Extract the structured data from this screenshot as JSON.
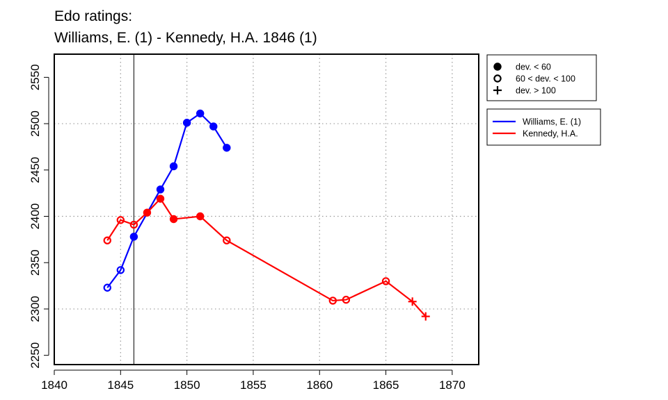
{
  "title": {
    "line1": "Edo ratings:",
    "line2": "Williams, E. (1) - Kennedy, H.A. 1846 (1)"
  },
  "colors": {
    "williams": "#0000ff",
    "kennedy": "#ff0000",
    "grid": "#999999",
    "axis": "#000000"
  },
  "chart_data": {
    "type": "line",
    "title": "Edo ratings: Williams, E. (1) - Kennedy, H.A. 1846 (1)",
    "xlabel": "",
    "ylabel": "",
    "xlim": [
      1840,
      1872
    ],
    "ylim": [
      2240,
      2575
    ],
    "x_ticks": [
      1840,
      1845,
      1850,
      1855,
      1860,
      1865,
      1870
    ],
    "y_ticks": [
      2250,
      2300,
      2350,
      2400,
      2450,
      2500,
      2550
    ],
    "x_grid": [
      1845,
      1850,
      1855,
      1860,
      1865,
      1870
    ],
    "y_grid": [
      2300,
      2400,
      2500
    ],
    "marker_line_x": 1846,
    "series": [
      {
        "name": "Williams, E. (1)",
        "color": "#0000ff",
        "points": [
          {
            "x": 1844,
            "y": 2323,
            "marker": "open"
          },
          {
            "x": 1845,
            "y": 2342,
            "marker": "open"
          },
          {
            "x": 1846,
            "y": 2378,
            "marker": "filled"
          },
          {
            "x": 1848,
            "y": 2429,
            "marker": "filled"
          },
          {
            "x": 1849,
            "y": 2454,
            "marker": "filled"
          },
          {
            "x": 1850,
            "y": 2501,
            "marker": "filled"
          },
          {
            "x": 1851,
            "y": 2511,
            "marker": "filled"
          },
          {
            "x": 1852,
            "y": 2497,
            "marker": "filled"
          },
          {
            "x": 1853,
            "y": 2474,
            "marker": "filled"
          }
        ]
      },
      {
        "name": "Kennedy, H.A.",
        "color": "#ff0000",
        "points": [
          {
            "x": 1844,
            "y": 2374,
            "marker": "open"
          },
          {
            "x": 1845,
            "y": 2396,
            "marker": "open"
          },
          {
            "x": 1846,
            "y": 2391,
            "marker": "open"
          },
          {
            "x": 1847,
            "y": 2404,
            "marker": "filled"
          },
          {
            "x": 1848,
            "y": 2419,
            "marker": "filled"
          },
          {
            "x": 1849,
            "y": 2397,
            "marker": "filled"
          },
          {
            "x": 1851,
            "y": 2400,
            "marker": "filled"
          },
          {
            "x": 1853,
            "y": 2374,
            "marker": "open"
          },
          {
            "x": 1861,
            "y": 2309,
            "marker": "open"
          },
          {
            "x": 1862,
            "y": 2310,
            "marker": "open"
          },
          {
            "x": 1865,
            "y": 2330,
            "marker": "open"
          },
          {
            "x": 1867,
            "y": 2308,
            "marker": "plus"
          },
          {
            "x": 1868,
            "y": 2292,
            "marker": "plus"
          }
        ]
      }
    ],
    "legend_markers": {
      "entries": [
        {
          "symbol": "filled",
          "label": "dev. < 60"
        },
        {
          "symbol": "open",
          "label": "60 < dev. < 100"
        },
        {
          "symbol": "plus",
          "label": "dev. > 100"
        }
      ]
    },
    "legend_series": {
      "entries": [
        {
          "color": "#0000ff",
          "label": "Williams, E. (1)"
        },
        {
          "color": "#ff0000",
          "label": "Kennedy, H.A."
        }
      ]
    }
  }
}
